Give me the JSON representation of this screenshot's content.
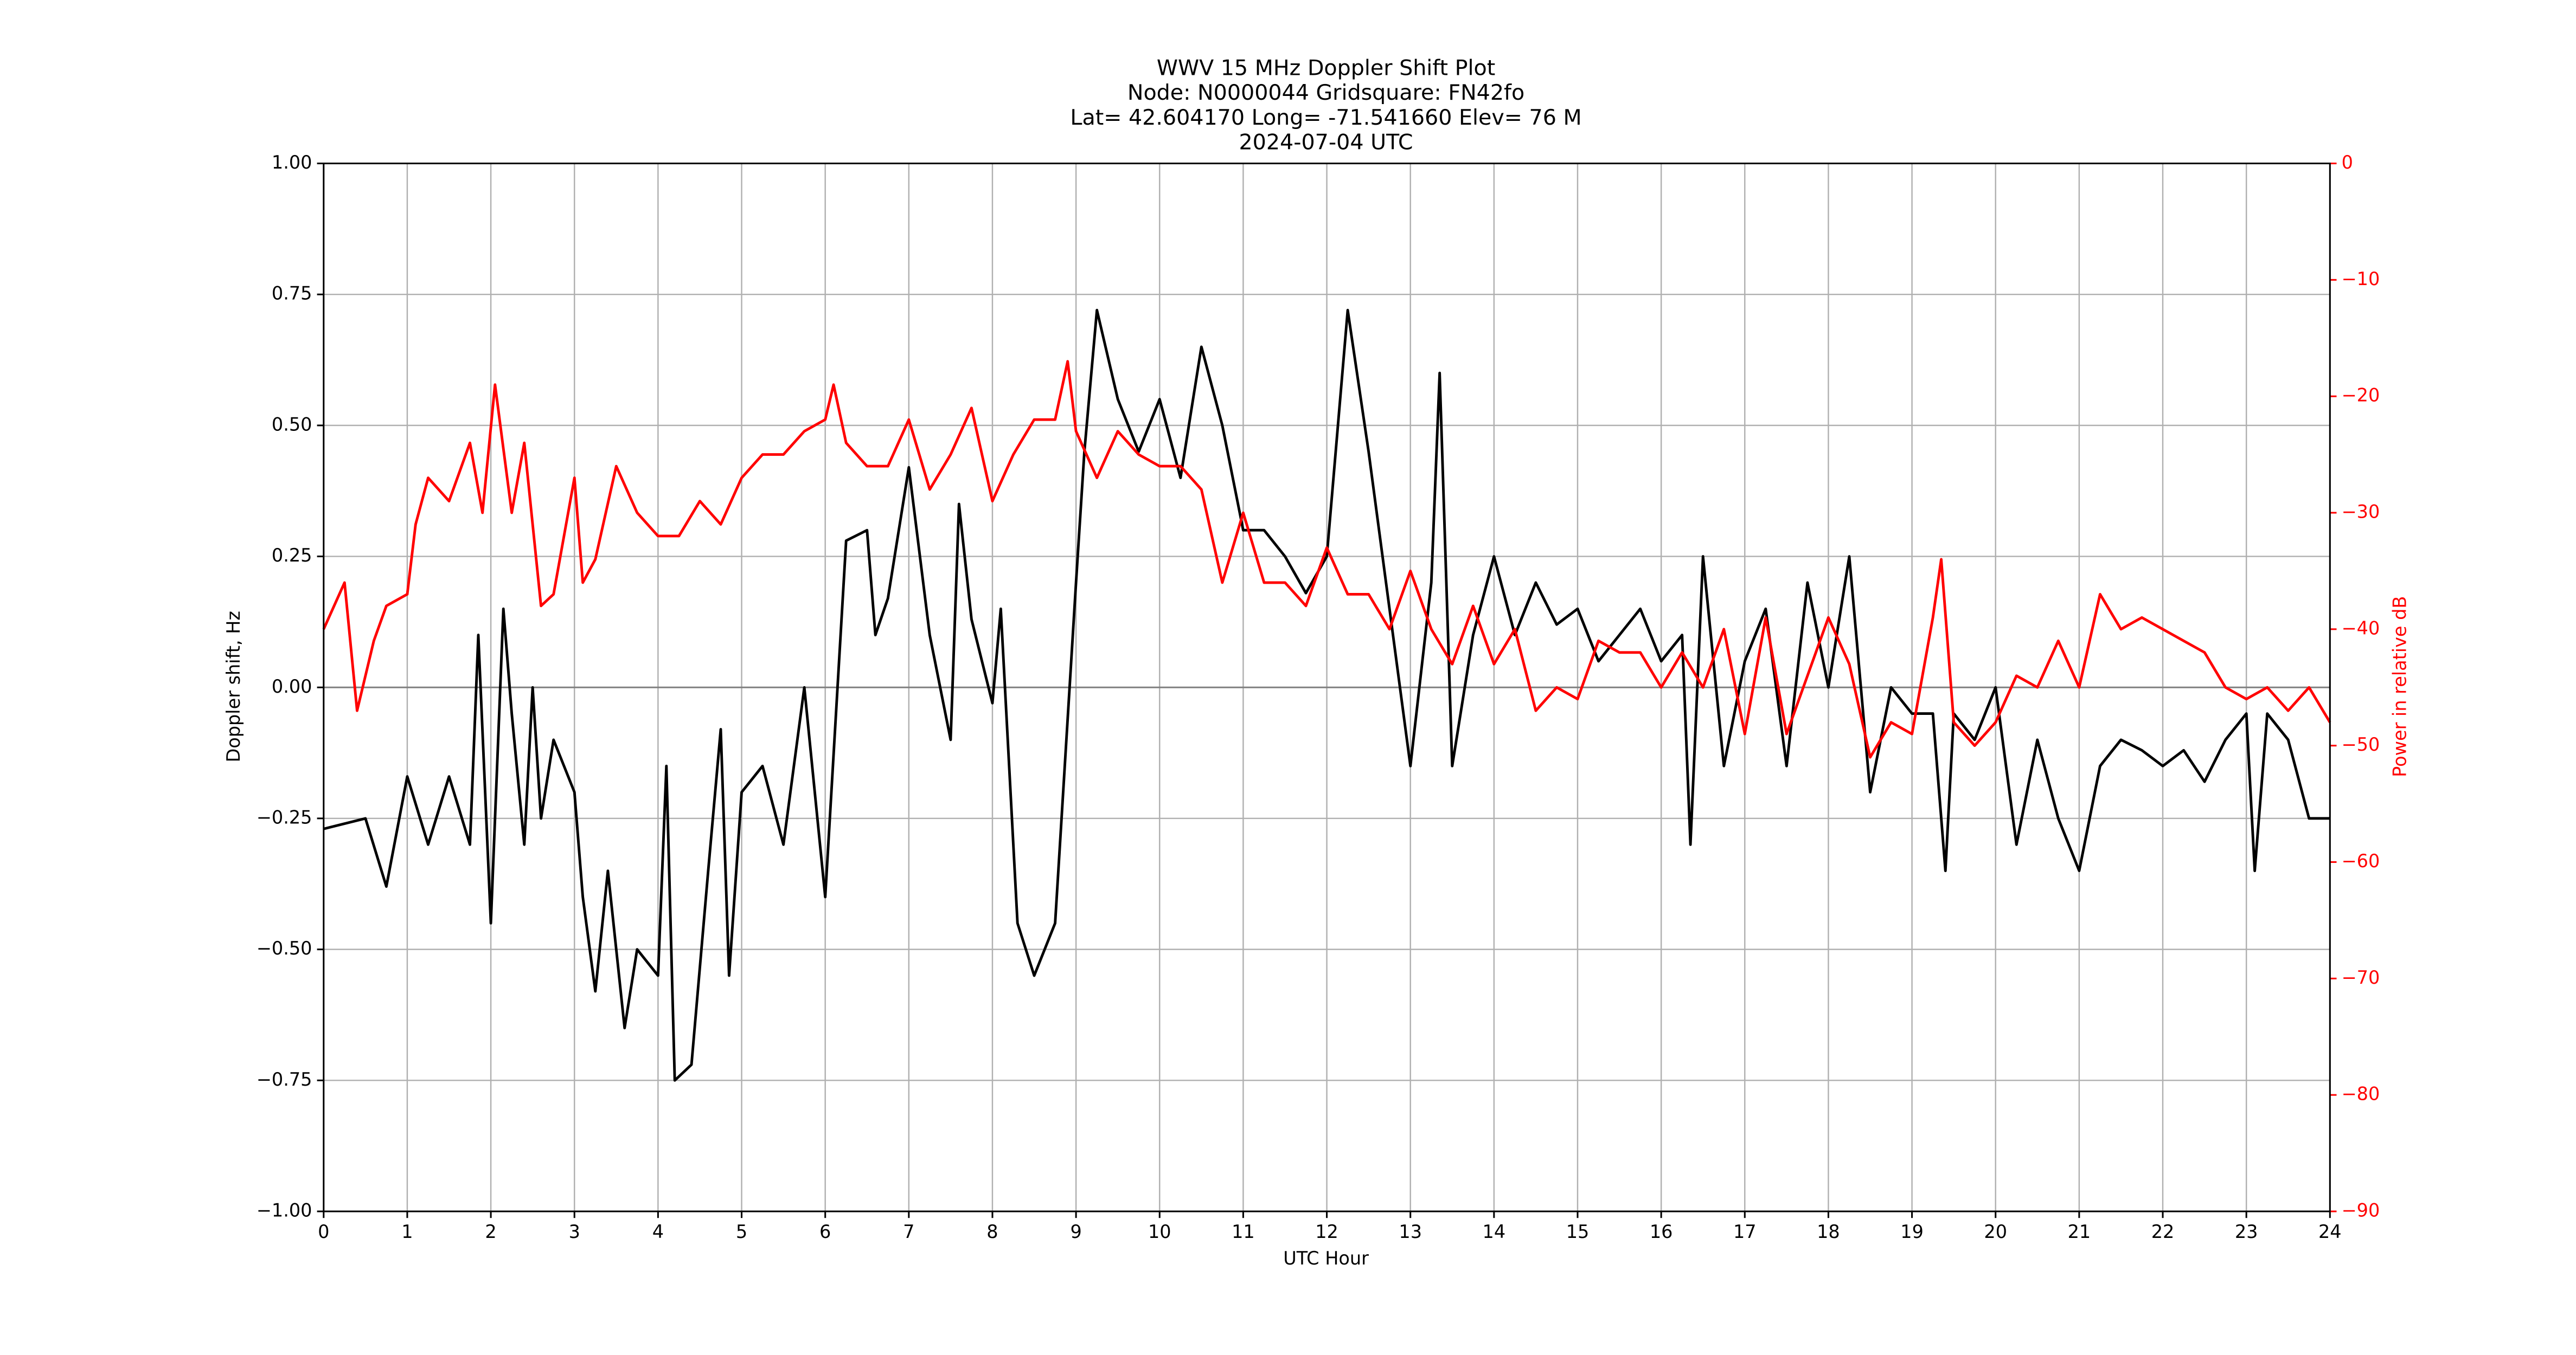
{
  "chart_data": {
    "type": "line",
    "title": [
      "WWV 15 MHz Doppler Shift Plot",
      "Node:  N0000044     Gridsquare:  FN42fo",
      "Lat= 42.604170    Long= -71.541660    Elev= 76 M",
      "2024-07-04  UTC"
    ],
    "x_label": "UTC Hour",
    "y_label": "Doppler shift, Hz",
    "y2_label": "Power in relative dB",
    "y2_color": "#ff0000",
    "xlim": [
      0,
      24
    ],
    "xticks": [
      0,
      1,
      2,
      3,
      4,
      5,
      6,
      7,
      8,
      9,
      10,
      11,
      12,
      13,
      14,
      15,
      16,
      17,
      18,
      19,
      20,
      21,
      22,
      23,
      24
    ],
    "ylim": [
      -1,
      1
    ],
    "yticks": [
      {
        "value": -1,
        "label": "−1.00"
      },
      {
        "value": -0.75,
        "label": "−0.75"
      },
      {
        "value": -0.5,
        "label": "−0.50"
      },
      {
        "value": -0.25,
        "label": "−0.25"
      },
      {
        "value": 0,
        "label": "0.00"
      },
      {
        "value": 0.25,
        "label": "0.25"
      },
      {
        "value": 0.5,
        "label": "0.50"
      },
      {
        "value": 0.75,
        "label": "0.75"
      },
      {
        "value": 1,
        "label": "1.00"
      }
    ],
    "y2lim": [
      -90,
      0
    ],
    "y2ticks": [
      {
        "value": -90,
        "label": "−90"
      },
      {
        "value": -80,
        "label": "−80"
      },
      {
        "value": -70,
        "label": "−70"
      },
      {
        "value": -60,
        "label": "−60"
      },
      {
        "value": -50,
        "label": "−50"
      },
      {
        "value": -40,
        "label": "−40"
      },
      {
        "value": -30,
        "label": "−30"
      },
      {
        "value": -20,
        "label": "−20"
      },
      {
        "value": -10,
        "label": "−10"
      },
      0
    ],
    "grid": true,
    "hline": 0,
    "series": [
      {
        "name": "Doppler shift",
        "color": "#000000",
        "axis": "y",
        "x": [
          0,
          0.25,
          0.5,
          0.75,
          1,
          1.25,
          1.5,
          1.75,
          1.85,
          2,
          2.15,
          2.25,
          2.4,
          2.5,
          2.6,
          2.75,
          3,
          3.1,
          3.25,
          3.4,
          3.6,
          3.75,
          4,
          4.1,
          4.2,
          4.4,
          4.6,
          4.75,
          4.85,
          5,
          5.25,
          5.5,
          5.75,
          6,
          6.25,
          6.5,
          6.6,
          6.75,
          7,
          7.25,
          7.5,
          7.6,
          7.75,
          8,
          8.1,
          8.3,
          8.5,
          8.75,
          9,
          9.1,
          9.25,
          9.5,
          9.75,
          10,
          10.25,
          10.5,
          10.75,
          11,
          11.25,
          11.5,
          11.75,
          12,
          12.25,
          12.5,
          12.75,
          13,
          13.25,
          13.35,
          13.5,
          13.75,
          14,
          14.25,
          14.5,
          14.75,
          15,
          15.25,
          15.5,
          15.75,
          16,
          16.25,
          16.35,
          16.5,
          16.75,
          17,
          17.25,
          17.5,
          17.75,
          18,
          18.25,
          18.5,
          18.75,
          19,
          19.25,
          19.4,
          19.5,
          19.75,
          20,
          20.25,
          20.5,
          20.75,
          21,
          21.25,
          21.5,
          21.75,
          22,
          22.25,
          22.5,
          22.75,
          23,
          23.1,
          23.25,
          23.5,
          23.75,
          24
        ],
        "values": [
          -0.27,
          -0.26,
          -0.25,
          -0.38,
          -0.17,
          -0.3,
          -0.17,
          -0.3,
          0.1,
          -0.45,
          0.15,
          -0.05,
          -0.3,
          0,
          -0.25,
          -0.1,
          -0.2,
          -0.4,
          -0.58,
          -0.35,
          -0.65,
          -0.5,
          -0.55,
          -0.15,
          -0.75,
          -0.72,
          -0.35,
          -0.08,
          -0.55,
          -0.2,
          -0.15,
          -0.3,
          0,
          -0.4,
          0.28,
          0.3,
          0.1,
          0.17,
          0.42,
          0.1,
          -0.1,
          0.35,
          0.13,
          -0.03,
          0.15,
          -0.45,
          -0.55,
          -0.45,
          0.2,
          0.45,
          0.72,
          0.55,
          0.45,
          0.55,
          0.4,
          0.65,
          0.5,
          0.3,
          0.3,
          0.25,
          0.18,
          0.25,
          0.72,
          0.45,
          0.15,
          -0.15,
          0.2,
          0.6,
          -0.15,
          0.1,
          0.25,
          0.1,
          0.2,
          0.12,
          0.15,
          0.05,
          0.1,
          0.15,
          0.05,
          0.1,
          -0.3,
          0.25,
          -0.15,
          0.05,
          0.15,
          -0.15,
          0.2,
          0,
          0.25,
          -0.2,
          0,
          -0.05,
          -0.05,
          -0.35,
          -0.05,
          -0.1,
          0,
          -0.3,
          -0.1,
          -0.25,
          -0.35,
          -0.15,
          -0.1,
          -0.12,
          -0.15,
          -0.12,
          -0.18,
          -0.1,
          -0.05,
          -0.35,
          -0.05,
          -0.1,
          -0.25,
          -0.25
        ]
      },
      {
        "name": "Power",
        "color": "#ff0000",
        "axis": "y2",
        "x": [
          0,
          0.25,
          0.4,
          0.6,
          0.75,
          1,
          1.1,
          1.25,
          1.5,
          1.75,
          1.9,
          2.05,
          2.25,
          2.4,
          2.6,
          2.75,
          3,
          3.1,
          3.25,
          3.5,
          3.75,
          4,
          4.25,
          4.5,
          4.75,
          5,
          5.25,
          5.5,
          5.75,
          6,
          6.1,
          6.25,
          6.5,
          6.75,
          7,
          7.25,
          7.5,
          7.75,
          8,
          8.25,
          8.5,
          8.75,
          8.9,
          9,
          9.25,
          9.5,
          9.75,
          10,
          10.25,
          10.5,
          10.75,
          11,
          11.25,
          11.5,
          11.75,
          12,
          12.25,
          12.5,
          12.75,
          13,
          13.25,
          13.5,
          13.75,
          14,
          14.25,
          14.5,
          14.75,
          15,
          15.25,
          15.5,
          15.75,
          16,
          16.25,
          16.5,
          16.75,
          17,
          17.25,
          17.5,
          17.75,
          18,
          18.25,
          18.5,
          18.75,
          19,
          19.25,
          19.35,
          19.5,
          19.75,
          20,
          20.25,
          20.5,
          20.75,
          21,
          21.25,
          21.5,
          21.75,
          22,
          22.25,
          22.5,
          22.75,
          23,
          23.25,
          23.5,
          23.75,
          24
        ],
        "values": [
          -40,
          -36,
          -47,
          -41,
          -38,
          -37,
          -31,
          -27,
          -29,
          -24,
          -30,
          -19,
          -30,
          -24,
          -38,
          -37,
          -27,
          -36,
          -34,
          -26,
          -30,
          -32,
          -32,
          -29,
          -31,
          -27,
          -25,
          -25,
          -23,
          -22,
          -19,
          -24,
          -26,
          -26,
          -22,
          -28,
          -25,
          -21,
          -29,
          -25,
          -22,
          -22,
          -17,
          -23,
          -27,
          -23,
          -25,
          -26,
          -26,
          -28,
          -36,
          -30,
          -36,
          -36,
          -38,
          -33,
          -37,
          -37,
          -40,
          -35,
          -40,
          -43,
          -38,
          -43,
          -40,
          -47,
          -45,
          -46,
          -41,
          -42,
          -42,
          -45,
          -42,
          -45,
          -40,
          -49,
          -39,
          -49,
          -44,
          -39,
          -43,
          -51,
          -48,
          -49,
          -39,
          -34,
          -48,
          -50,
          -48,
          -44,
          -45,
          -41,
          -45,
          -37,
          -40,
          -39,
          -40,
          -41,
          -42,
          -45,
          -46,
          -45,
          -47,
          -45,
          -48
        ]
      }
    ]
  }
}
